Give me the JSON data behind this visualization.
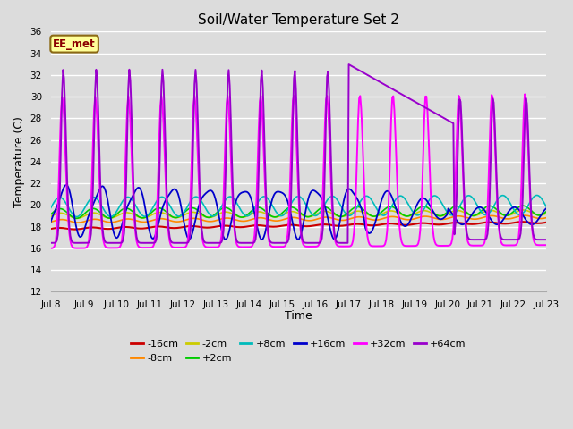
{
  "title": "Soil/Water Temperature Set 2",
  "xlabel": "Time",
  "ylabel": "Temperature (C)",
  "ylim": [
    12,
    36
  ],
  "yticks": [
    12,
    14,
    16,
    18,
    20,
    22,
    24,
    26,
    28,
    30,
    32,
    34,
    36
  ],
  "background_color": "#dcdcdc",
  "plot_bg_color": "#dcdcdc",
  "grid_color": "#ffffff",
  "annotation_text": "EE_met",
  "annotation_bg": "#ffff99",
  "annotation_border": "#8b6914",
  "annotation_text_color": "#8b0000",
  "series": [
    {
      "label": "-16cm",
      "color": "#cc0000"
    },
    {
      "label": "-8cm",
      "color": "#ff8800"
    },
    {
      "label": "-2cm",
      "color": "#cccc00"
    },
    {
      "label": "+2cm",
      "color": "#00cc00"
    },
    {
      "label": "+8cm",
      "color": "#00bbbb"
    },
    {
      "label": "+16cm",
      "color": "#0000cc"
    },
    {
      "label": "+32cm",
      "color": "#ff00ff"
    },
    {
      "label": "+64cm",
      "color": "#9900cc"
    }
  ],
  "xtick_labels": [
    "Jul 8",
    "Jul 9",
    "Jul 10",
    "Jul 11",
    "Jul 12",
    "Jul 13",
    "Jul 14",
    "Jul 15",
    "Jul 16",
    "Jul 17",
    "Jul 18",
    "Jul 19",
    "Jul 20",
    "Jul 21",
    "Jul 22",
    "Jul 23"
  ],
  "n_points": 480
}
